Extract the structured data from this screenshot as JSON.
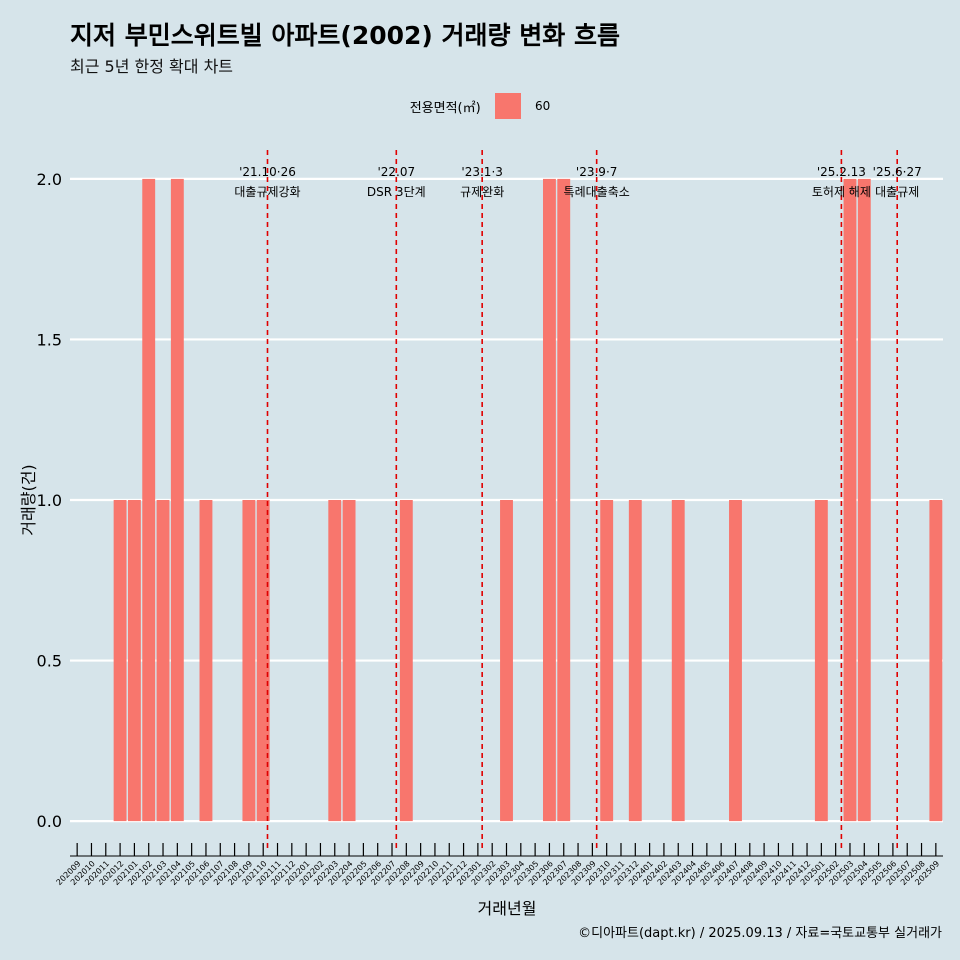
{
  "title": "지저 부민스위트빌 아파트(2002) 거래량 변화 흐름",
  "subtitle": "최근 5년 한정 확대 차트",
  "caption": "©디아파트(dapt.kr) / 2025.09.13 / 자료=국토교통부 실거래가",
  "colors": {
    "background": "#d6e4ea",
    "bar": "#f8766d",
    "grid": "#ffffff",
    "event_line": "#e00000"
  },
  "chart_data": {
    "type": "bar",
    "title": "지저 부민스위트빌 아파트(2002) 거래량 변화 흐름",
    "xlabel": "거래년월",
    "ylabel": "거래량(건)",
    "ylim": [
      -0.09,
      2.09
    ],
    "y_ticks": [
      "0.0",
      "0.5",
      "1.0",
      "1.5",
      "2.0"
    ],
    "y_tick_values": [
      0,
      0.5,
      1.0,
      1.5,
      2.0
    ],
    "grid": true,
    "legend": {
      "title": "전용면적(㎡)",
      "position": "top",
      "entries": [
        "60"
      ]
    },
    "categories": [
      "202009",
      "202010",
      "202011",
      "202012",
      "202101",
      "202102",
      "202103",
      "202104",
      "202105",
      "202106",
      "202107",
      "202108",
      "202109",
      "202110",
      "202111",
      "202112",
      "202201",
      "202202",
      "202203",
      "202204",
      "202205",
      "202206",
      "202207",
      "202208",
      "202209",
      "202210",
      "202211",
      "202212",
      "202301",
      "202302",
      "202303",
      "202304",
      "202305",
      "202306",
      "202307",
      "202308",
      "202309",
      "202310",
      "202311",
      "202312",
      "202401",
      "202402",
      "202403",
      "202404",
      "202405",
      "202406",
      "202407",
      "202408",
      "202409",
      "202410",
      "202411",
      "202412",
      "202501",
      "202502",
      "202503",
      "202504",
      "202505",
      "202506",
      "202507",
      "202508",
      "202509"
    ],
    "series": [
      {
        "name": "60",
        "values": [
          0,
          0,
          0,
          1,
          1,
          2,
          1,
          2,
          0,
          1,
          0,
          0,
          1,
          1,
          0,
          0,
          0,
          0,
          1,
          1,
          0,
          0,
          0,
          1,
          0,
          0,
          0,
          0,
          0,
          0,
          1,
          0,
          0,
          2,
          2,
          0,
          0,
          1,
          0,
          1,
          0,
          0,
          1,
          0,
          0,
          0,
          1,
          0,
          0,
          0,
          0,
          0,
          1,
          0,
          2,
          2,
          0,
          0,
          0,
          0,
          1
        ]
      }
    ],
    "events": [
      {
        "date": "'21.10·26",
        "label": "대출규제강화",
        "index": 13.3
      },
      {
        "date": "'22.07",
        "label": "DSR 3단계",
        "index": 22.3
      },
      {
        "date": "'23.1·3",
        "label": "규제완화",
        "index": 28.3
      },
      {
        "date": "'23.9·7",
        "label": "특례대출축소",
        "index": 36.3
      },
      {
        "date": "'25.2.13",
        "label": "토허제 해제",
        "index": 53.4
      },
      {
        "date": "'25.6·27",
        "label": "대출규제",
        "index": 57.3
      }
    ]
  }
}
